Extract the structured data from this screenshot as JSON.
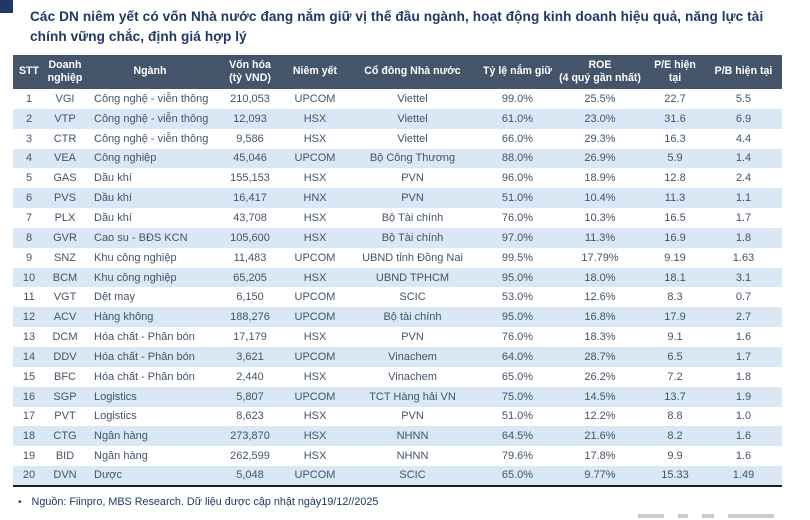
{
  "title": "Các DN niêm yết có vốn Nhà nước đang nắm giữ vị thế đầu ngành, hoạt động kinh doanh hiệu quả, năng lực tài chính vững chắc, định giá hợp lý",
  "colors": {
    "header_bg": "#44546a",
    "row_alt": "#dae7f4",
    "title_text": "#1f3864",
    "body_text": "#44546a"
  },
  "table": {
    "columns": [
      {
        "label": "STT"
      },
      {
        "label": "Doanh\nnghiệp"
      },
      {
        "label": "Ngành"
      },
      {
        "label": "Vốn hóa\n(tỷ VND)"
      },
      {
        "label": "Niêm yết"
      },
      {
        "label": "Cổ đông Nhà nước"
      },
      {
        "label": "Tỷ lệ nắm giữ"
      },
      {
        "label": "ROE\n(4 quý gần nhất)"
      },
      {
        "label": "P/E hiện tại"
      },
      {
        "label": "P/B hiện tại"
      }
    ],
    "rows": [
      [
        "1",
        "VGI",
        "Công nghệ - viễn thông",
        "210,053",
        "UPCOM",
        "Viettel",
        "99.0%",
        "25.5%",
        "22.7",
        "5.5"
      ],
      [
        "2",
        "VTP",
        "Công nghệ - viễn thông",
        "12,093",
        "HSX",
        "Viettel",
        "61.0%",
        "23.0%",
        "31.6",
        "6.9"
      ],
      [
        "3",
        "CTR",
        "Công nghệ - viễn thông",
        "9,586",
        "HSX",
        "Viettel",
        "66.0%",
        "29.3%",
        "16.3",
        "4.4"
      ],
      [
        "4",
        "VEA",
        "Công nghiệp",
        "45,046",
        "UPCOM",
        "Bộ Công Thương",
        "88.0%",
        "26.9%",
        "5.9",
        "1.4"
      ],
      [
        "5",
        "GAS",
        "Dầu khí",
        "155,153",
        "HSX",
        "PVN",
        "96.0%",
        "18.9%",
        "12.8",
        "2.4"
      ],
      [
        "6",
        "PVS",
        "Dầu khí",
        "16,417",
        "HNX",
        "PVN",
        "51.0%",
        "10.4%",
        "11.3",
        "1.1"
      ],
      [
        "7",
        "PLX",
        "Dầu khí",
        "43,708",
        "HSX",
        "Bộ Tài chính",
        "76.0%",
        "10.3%",
        "16.5",
        "1.7"
      ],
      [
        "8",
        "GVR",
        "Cao su - BĐS KCN",
        "105,600",
        "HSX",
        "Bộ Tài chính",
        "97.0%",
        "11.3%",
        "16.9",
        "1.8"
      ],
      [
        "9",
        "SNZ",
        "Khu công nghiệp",
        "11,483",
        "UPCOM",
        "UBND tỉnh Đồng Nai",
        "99.5%",
        "17.79%",
        "9.19",
        "1.63"
      ],
      [
        "10",
        "BCM",
        "Khu công nghiệp",
        "65,205",
        "HSX",
        "UBND TPHCM",
        "95.0%",
        "18.0%",
        "18.1",
        "3.1"
      ],
      [
        "11",
        "VGT",
        "Dệt may",
        "6,150",
        "UPCOM",
        "SCIC",
        "53.0%",
        "12.6%",
        "8.3",
        "0.7"
      ],
      [
        "12",
        "ACV",
        "Hàng không",
        "188,276",
        "UPCOM",
        "Bộ tài chính",
        "95.0%",
        "16.8%",
        "17.9",
        "2.7"
      ],
      [
        "13",
        "DCM",
        "Hóa chất - Phân bón",
        "17,179",
        "HSX",
        "PVN",
        "76.0%",
        "18.3%",
        "9.1",
        "1.6"
      ],
      [
        "14",
        "DDV",
        "Hóa chất - Phân bón",
        "3,621",
        "UPCOM",
        "Vinachem",
        "64.0%",
        "28.7%",
        "6.5",
        "1.7"
      ],
      [
        "15",
        "BFC",
        "Hóa chất - Phân bón",
        "2,440",
        "HSX",
        "Vinachem",
        "65.0%",
        "26.2%",
        "7.2",
        "1.8"
      ],
      [
        "16",
        "SGP",
        "Logistics",
        "5,807",
        "UPCOM",
        "TCT Hàng hải VN",
        "75.0%",
        "14.5%",
        "13.7",
        "1.9"
      ],
      [
        "17",
        "PVT",
        "Logistics",
        "8,623",
        "HSX",
        "PVN",
        "51.0%",
        "12.2%",
        "8.8",
        "1.0"
      ],
      [
        "18",
        "CTG",
        "Ngân hàng",
        "273,870",
        "HSX",
        "NHNN",
        "64.5%",
        "21.6%",
        "8.2",
        "1.6"
      ],
      [
        "19",
        "BID",
        "Ngân hàng",
        "262,599",
        "HSX",
        "NHNN",
        "79.6%",
        "17.8%",
        "9.9",
        "1.6"
      ],
      [
        "20",
        "DVN",
        "Dược",
        "5,048",
        "UPCOM",
        "SCIC",
        "65.0%",
        "9.77%",
        "15.33",
        "1.49"
      ]
    ]
  },
  "footer": {
    "bullet": "•",
    "source": "Nguồn: Fiinpro, MBS Research. Dữ liệu được cập nhật ngày19/12//2025"
  }
}
